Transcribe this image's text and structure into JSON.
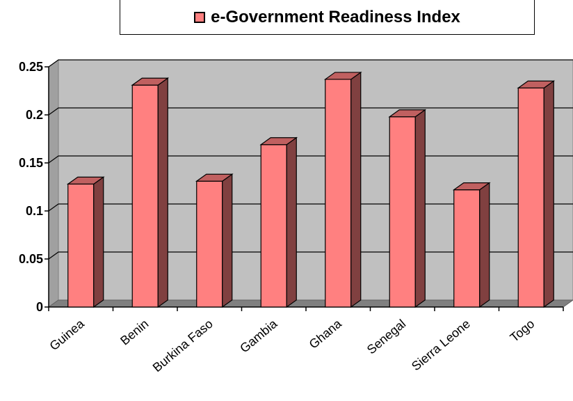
{
  "chart_data": {
    "type": "bar",
    "title": "",
    "xlabel": "",
    "ylabel": "",
    "categories": [
      "Guinea",
      "Benin",
      "Burkina Faso",
      "Gambia",
      "Ghana",
      "Senegal",
      "Sierra Leone",
      "Togo"
    ],
    "series": [
      {
        "name": "e-Government Readiness Index",
        "values": [
          0.128,
          0.231,
          0.131,
          0.169,
          0.237,
          0.198,
          0.122,
          0.228
        ]
      }
    ],
    "ylim": [
      0,
      0.25
    ],
    "yticks": [
      "0",
      "0.05",
      "0.1",
      "0.15",
      "0.2",
      "0.25"
    ],
    "legend_position": "top",
    "grid": true,
    "style": "3d",
    "colors": {
      "bar_front": "#ff8080",
      "bar_side": "#804040",
      "bar_top": "#c06060",
      "back_wall": "#c0c0c0",
      "floor": "#808080"
    }
  }
}
